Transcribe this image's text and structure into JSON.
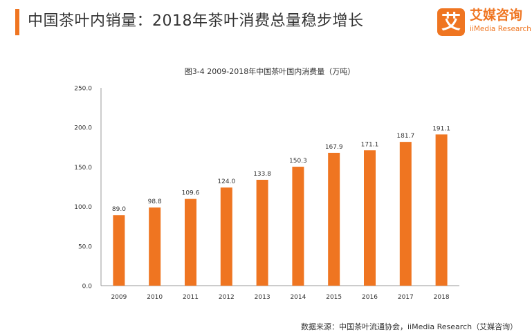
{
  "header": {
    "title": "中国茶叶内销量：2018年茶叶消费总量稳步增长",
    "accent_color": "#ef7521"
  },
  "logo": {
    "mark": "艾",
    "name_cn": "艾媒咨询",
    "name_en": "iiMedia Research"
  },
  "chart_data": {
    "type": "bar",
    "title": "图3-4 2009-2018年中国茶叶国内消费量（万吨）",
    "categories": [
      "2009",
      "2010",
      "2011",
      "2012",
      "2013",
      "2014",
      "2015",
      "2016",
      "2017",
      "2018"
    ],
    "values": [
      89.0,
      98.8,
      109.6,
      124.0,
      133.8,
      150.3,
      167.9,
      171.1,
      181.7,
      191.1
    ],
    "value_labels": [
      "89.0",
      "98.8",
      "109.6",
      "124.0",
      "133.8",
      "150.3",
      "167.9",
      "171.1",
      "181.7",
      "191.1"
    ],
    "ylim": [
      0,
      250
    ],
    "yticks": [
      "0.0",
      "50.0",
      "100.0",
      "150.0",
      "200.0",
      "250.0"
    ],
    "xlabel": "",
    "ylabel": "",
    "grid": false,
    "bar_color": "#ef7521"
  },
  "source": {
    "text": "数据来源：中国茶叶流通协会，iiMedia Research（艾媒咨询）"
  }
}
